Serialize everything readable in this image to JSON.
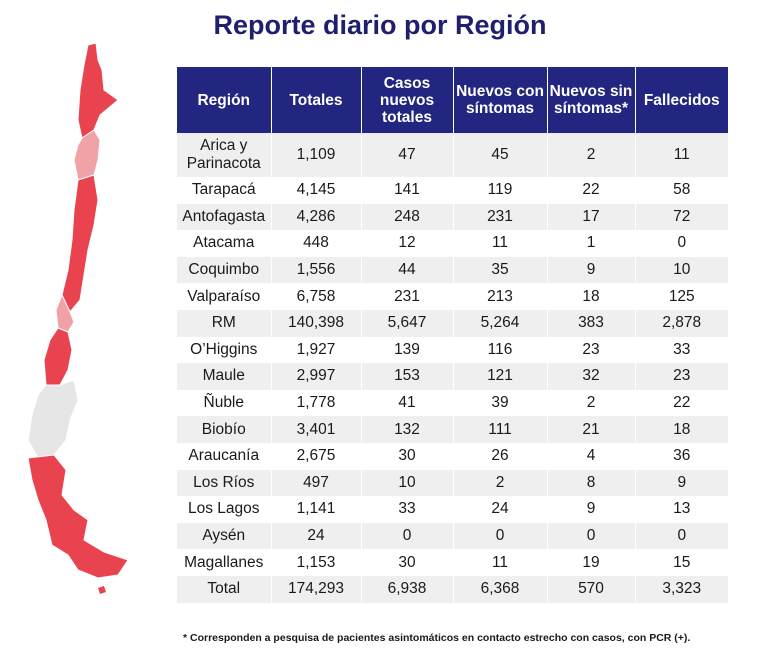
{
  "title": "Reporte diario por Región",
  "colors": {
    "header_bg": "#232680",
    "map_red": "#e8434f",
    "map_pink": "#f0a3a6",
    "map_gray": "#e6e6e6"
  },
  "table": {
    "headers": [
      "Región",
      "Totales",
      "Casos nuevos totales",
      "Nuevos con síntomas",
      "Nuevos sin síntomas*",
      "Fallecidos"
    ],
    "rows": [
      [
        "Arica y Parinacota",
        "1,109",
        "47",
        "45",
        "2",
        "11"
      ],
      [
        "Tarapacá",
        "4,145",
        "141",
        "119",
        "22",
        "58"
      ],
      [
        "Antofagasta",
        "4,286",
        "248",
        "231",
        "17",
        "72"
      ],
      [
        "Atacama",
        "448",
        "12",
        "11",
        "1",
        "0"
      ],
      [
        "Coquimbo",
        "1,556",
        "44",
        "35",
        "9",
        "10"
      ],
      [
        "Valparaíso",
        "6,758",
        "231",
        "213",
        "18",
        "125"
      ],
      [
        "RM",
        "140,398",
        "5,647",
        "5,264",
        "383",
        "2,878"
      ],
      [
        "O’Higgins",
        "1,927",
        "139",
        "116",
        "23",
        "33"
      ],
      [
        "Maule",
        "2,997",
        "153",
        "121",
        "32",
        "23"
      ],
      [
        "Ñuble",
        "1,778",
        "41",
        "39",
        "2",
        "22"
      ],
      [
        "Biobío",
        "3,401",
        "132",
        "111",
        "21",
        "18"
      ],
      [
        "Araucanía",
        "2,675",
        "30",
        "26",
        "4",
        "36"
      ],
      [
        "Los Ríos",
        "497",
        "10",
        "2",
        "8",
        "9"
      ],
      [
        "Los Lagos",
        "1,141",
        "33",
        "24",
        "9",
        "13"
      ],
      [
        "Aysén",
        "24",
        "0",
        "0",
        "0",
        "0"
      ],
      [
        "Magallanes",
        "1,153",
        "30",
        "11",
        "19",
        "15"
      ],
      [
        "Total",
        "174,293",
        "6,938",
        "6,368",
        "570",
        "3,323"
      ]
    ]
  },
  "footnote": "* Corresponden a pesquisa de pacientes asintomáticos en contacto estrecho con casos, con PCR (+)."
}
